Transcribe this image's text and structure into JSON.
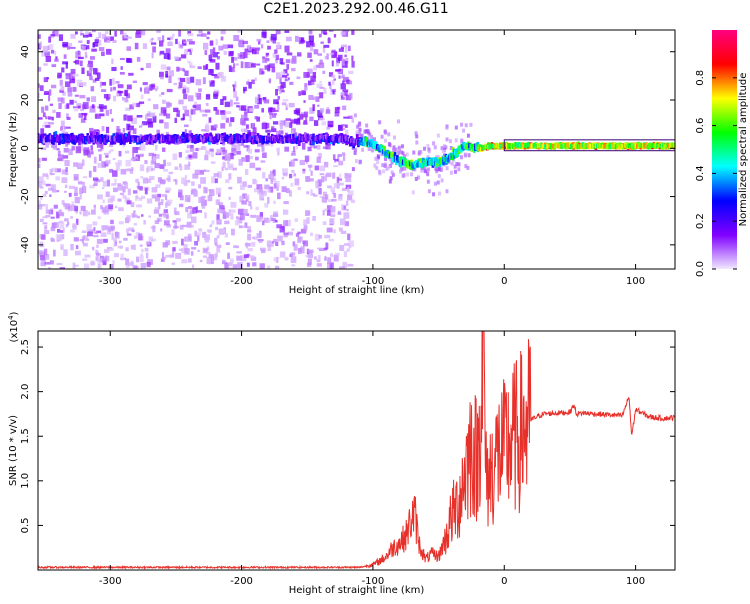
{
  "title": "C2E1.2023.292.00.46.G11",
  "chart_data": [
    {
      "type": "heatmap",
      "title": "C2E1.2023.292.00.46.G11",
      "xlabel": "Height of straight line (km)",
      "ylabel": "Frequency (Hz)",
      "xlim": [
        -355,
        130
      ],
      "ylim": [
        -50,
        49
      ],
      "x_ticks": [
        -300,
        -200,
        -100,
        0,
        100
      ],
      "x_tick_labels": [
        "-300",
        "-200",
        "-100",
        "0",
        "100"
      ],
      "y_ticks": [
        -40,
        -20,
        0,
        20,
        40
      ],
      "y_tick_labels": [
        "-40",
        "-20",
        "0",
        "20",
        "40"
      ],
      "colorbar": {
        "label": "Normalized spectral amplitude",
        "range": [
          0.0,
          1.0
        ],
        "ticks": [
          0.0,
          0.2,
          0.4,
          0.6,
          0.8
        ],
        "tick_labels": [
          "0.0",
          "0.2",
          "0.4",
          "0.6",
          "0.8"
        ],
        "colors": [
          "#f0e8ff",
          "#8000ff",
          "#0000ff",
          "#00ffff",
          "#00ff00",
          "#ffff00",
          "#ff0000",
          "#ff0080"
        ]
      },
      "grid": false,
      "ridge": [
        {
          "x": -355,
          "y": 4
        },
        {
          "x": -300,
          "y": 4
        },
        {
          "x": -200,
          "y": 4
        },
        {
          "x": -130,
          "y": 4
        },
        {
          "x": -110,
          "y": 3
        },
        {
          "x": -100,
          "y": 2
        },
        {
          "x": -90,
          "y": -2
        },
        {
          "x": -80,
          "y": -5
        },
        {
          "x": -70,
          "y": -7
        },
        {
          "x": -60,
          "y": -6
        },
        {
          "x": -50,
          "y": -6
        },
        {
          "x": -40,
          "y": -3
        },
        {
          "x": -30,
          "y": 1
        },
        {
          "x": -20,
          "y": 0
        },
        {
          "x": -10,
          "y": 1
        },
        {
          "x": 0,
          "y": 1
        },
        {
          "x": 50,
          "y": 1
        },
        {
          "x": 100,
          "y": 1
        },
        {
          "x": 130,
          "y": 1
        }
      ]
    },
    {
      "type": "line",
      "xlabel": "Height of straight line (km)",
      "ylabel": "SNR (10 * v/v)",
      "y_scale_label": "(x10",
      "y_scale_exponent": "4",
      "y_scale_close": ")",
      "xlim": [
        -355,
        130
      ],
      "ylim": [
        0,
        2.68
      ],
      "x_ticks": [
        -300,
        -200,
        -100,
        0,
        100
      ],
      "x_tick_labels": [
        "-300",
        "-200",
        "-100",
        "0",
        "100"
      ],
      "y_ticks": [
        0.5,
        1.0,
        1.5,
        2.0,
        2.5
      ],
      "y_tick_labels": [
        "0.5",
        "1.0",
        "1.5",
        "2.0",
        "2.5"
      ],
      "grid": false,
      "color": "#e8302a",
      "series": [
        {
          "x": [
            -355,
            -300,
            -250,
            -200,
            -150,
            -110,
            -100,
            -95,
            -90,
            -85,
            -80,
            -75,
            -70,
            -68,
            -65,
            -60,
            -55,
            -50,
            -45,
            -40,
            -35,
            -30,
            -25,
            -20,
            -16,
            -14,
            -10,
            -5,
            0,
            5,
            10,
            15,
            20,
            25,
            30,
            40,
            50,
            53,
            55,
            60,
            70,
            80,
            90,
            95,
            97,
            100,
            110,
            120,
            130
          ],
          "y": [
            0.03,
            0.03,
            0.03,
            0.03,
            0.03,
            0.03,
            0.06,
            0.1,
            0.15,
            0.25,
            0.3,
            0.38,
            0.6,
            0.62,
            0.3,
            0.12,
            0.18,
            0.15,
            0.35,
            0.6,
            0.75,
            1.1,
            1.4,
            1.2,
            2.68,
            1.0,
            1.1,
            1.3,
            1.35,
            1.45,
            1.5,
            1.6,
            1.68,
            1.72,
            1.75,
            1.76,
            1.77,
            1.85,
            1.75,
            1.76,
            1.75,
            1.74,
            1.73,
            1.95,
            1.5,
            1.8,
            1.72,
            1.7,
            1.71
          ]
        }
      ]
    }
  ]
}
